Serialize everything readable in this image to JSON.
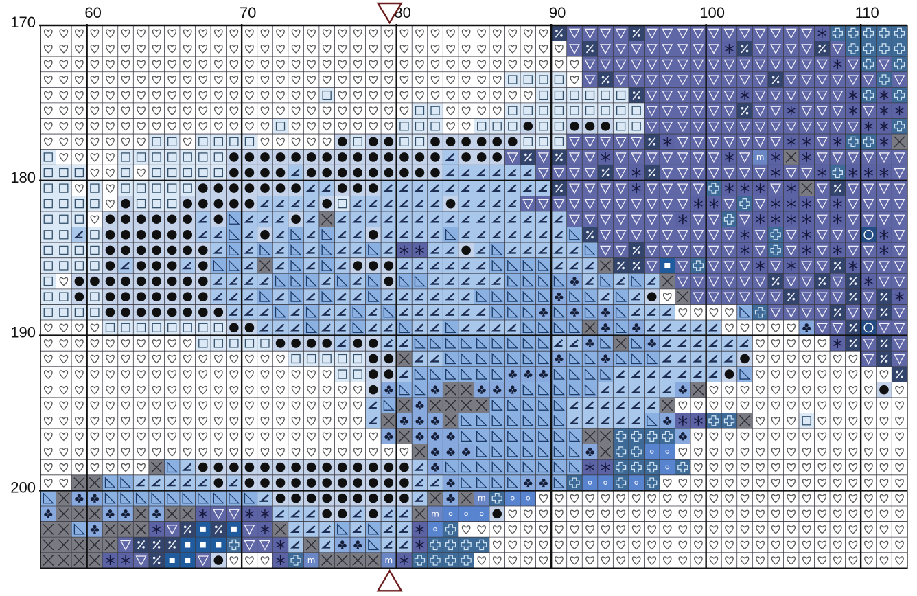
{
  "chart": {
    "col_start": 57,
    "row_start": 170,
    "col_labels": [
      "60",
      "70",
      "80",
      "90",
      "100",
      "110"
    ],
    "row_labels": [
      "170",
      "180",
      "190",
      "200"
    ],
    "center_col": 80,
    "center_markers": [
      "top",
      "bottom"
    ]
  },
  "legend": {
    "H": {
      "fill": "#ffffff",
      "symbol": "heart",
      "color": "#555555"
    },
    "S": {
      "fill": "#dbe8f5",
      "symbol": "square",
      "color": "#34506a"
    },
    "D": {
      "fill": "#c5d3ea",
      "symbol": "dot",
      "color": "#101010"
    },
    "L": {
      "fill": "#a9c7ea",
      "symbol": "angle",
      "color": "#1d2e52"
    },
    "T": {
      "fill": "#8bb1e3",
      "symbol": "tri",
      "color": "#1d3a66"
    },
    "C": {
      "fill": "#88a9de",
      "symbol": "club",
      "color": "#141e38"
    },
    "X": {
      "fill": "#7a7b82",
      "symbol": "x",
      "color": "#2c2c33"
    },
    "V": {
      "fill": "#6067a6",
      "symbol": "vtri",
      "color": "#f2f2fa"
    },
    "A": {
      "fill": "#5b63a4",
      "symbol": "star",
      "color": "#14163a"
    },
    "P": {
      "fill": "#3d6a96",
      "symbol": "cross",
      "color": "#cde2f2"
    },
    "K": {
      "fill": "#33456c",
      "symbol": "pct",
      "color": "#eef0f8"
    },
    "B": {
      "fill": "#1f5b9d",
      "symbol": "sqw",
      "color": "#ffffff"
    },
    "O": {
      "fill": "#254d85",
      "symbol": "ring",
      "color": "#ffffff"
    },
    "E": {
      "fill": "#5783cf",
      "symbol": "smalldot",
      "color": "#e8eefc"
    },
    "M": {
      "fill": "#6b86c4",
      "symbol": "m",
      "color": "#ffffff"
    },
    "Q": {
      "fill": "#5c5d63",
      "symbol": "seven",
      "color": "#ffffff"
    }
  },
  "grid_rows": [
    "HHHHHHHHHHHHHHHHHHHHHHHHHHHHHHHHHKVVVVKVVVVVVVVVVVAPPPPPBPP",
    "HHHHHHHHHHHHHHHHHHHHHHHHHHHHHHHHHHVKVVVVVVVVAKVVVVKVPPPPPPP",
    "HHHHHHHHHHHHHHHHHHHHHHHHHHHHHHHHHHHVVVVVVVVVVVVVVVVAVPVPVVBP",
    "HHHHHHHHHHHHHHHHHHHHHHHHHHHHHHSSSSHVKVVVVVVVVVVKVVVVVVPVPPVP",
    "HHHHHHHHHHHHHHHHHHSHHHHHHHHHHHHHSSSSSSKVVVVVVAVVVVVVAPAPPPVX",
    "HHHHHHHHHHHHHHHHHHHHHHHHSSHHHHSSSSSSSSSVVVVVVKVVAVVVAVAAAVAX",
    "HHHHHHHHHHHHHHHSHHHHHHHSSSHHSSSDSSDDDSSVVVVVVVVVVVVVVAAPPPAXA",
    "HHHHHHHSSHSSSSHHHHHDSDDSSDDDDDDSSSVVVVVKAVVVVVVVAAVAPPAXA",
    "SHHHHSSSSSSSDDDDDDDDDDDDDDLDDDVKVKVVAVVVVVVVAVMAXA",
    "SSSHHSHSSSSSDDDDLDDDDDDDDDLLLLLLVVVVKVAKVVVVVVVAVVAPAAA",
    "SSHSHSSSSSDDDDDDDLLDDDLLLLLLLLLLLKVVVVAVVVVPAAAVAXVK",
    "SSSSHDSSSDDDDDLLLLDSLLLLLLDLLLLVVVVVVVVVVVAAVPVAAAVA",
    "SSSHDDDDDDLDTLLLDLXLLLLLLLLLLLLLLLVVVVVVVAVVPVAAAAVA",
    "SSLSDDDDDDLLTLDLTLTLLDLLLLTLLLLLLLTKVVVVVVVVVAVPVAVVVOA",
    "SSSSDDDDDDDLTLTLTLTLLTLAALLDLTLLLLLTVVKVVVVVVAVPVAVAVVA",
    "SSSSDLDDDLDTTLXLTLTLDDDLLLLLLTTTTLLLXKKVBVPVVVAVAVVKA",
    "SHDDDDDDDDDLLLLTTTLTLTDTTLLLLLTTTTCLTLTLXVVVVVVKVVKVKA",
    "SSDSDDDDDDDLLLTLTLTLLTLLLLLLTTTTTCTTLTLDHXVVVVVVKVVVKVKA",
    "SSSSDDDDDDDDLLLTLTLLTLTLLLLLLTTTCTCTCTLLLHHHHTPVVVVKVVKVVV",
    "HHHHSSSSSSSSDDLLLTLLTLLTLLTLLLLTTTTXCTCLLLLLHHHHHCVVKOVVVVV",
    "HHHHHHHHHHSSSSSDDDDLDDLLTTTTTTTTTLLCTXTCLLLLLLHHHHHAKVKVKVV",
    "HHHHHHHHHHHHHHHHSSSSSDDXLLTTTTTTTCTTCTTTLLLLLDHHHHHHHVKVKVKV",
    "HHHHHHHHHHHHHHHHHHHSSDDLTTTTTTCCCTTTTLLLLLLLDTHHHHHHHHHKVK",
    "HHHHHHHHHHHHHHHHHHHHHDCTTCXXCCCTTTTTLLLLLCXHHHHHHHHHHHDHQKV",
    "HHHHHHHHHHHHHHHHHHHHHLTXCXXXXTTTTTLLLLLLXHHHHHHHHHHHHHHHA",
    "HHHHHHHHHHHHHHHHHHHHHLXCCCXTTTTTTTLLLLLTCAAPPXHHHSHHHHHHH",
    "HHHHHHHHHHHHHHHHHHHHHHCXCCCTTTTTTTTXXPPPPCHHHHHHHHHHHHHHH",
    "HHHHHHHHHHHHHHHHHHHHHHHHXCCCTTTTTTTCXPPEEHHHHHHHHHHHHHHHH",
    "HHHHHHHXTLDDDDDDDDDDDDDDLCTTTTTTTTTAAPPPEPHHHHHHHHHHHHHHHH",
    "HHXXTTLLLLLDLDDDDDDDDDDDLLCTTTTCCTPEEPEPHHHHHHHHHHHHHHHHHH",
    "TXCCTTTTTTTTTTLDDDDDDDDDLXCXMPEEHHHHHHHHHHHHHHHHHHHHHHHHHH",
    "CXXXCCXCXXAVVAALLLDDLDLLXMEEEDHHHHHHHHHHHHHHHHHHHHHHHHHHH",
    "XXTCXXXAVKBKBVAXLLLTLTLLAEPHHHHHHHHHHHHHHHHHHHHHHHHHHHHHHH",
    "XXXXXVKKKBBBPVVALXLCCTLLAPPPPHHHHHHHHHHHHHHHHHHHHHHHHHHHHH",
    "XXXXAAVKBBVDHHHAPMXXXXMAPPPPHHHHHHHHHHHHHHHHHHHHHHHHHHHHHH"
  ]
}
